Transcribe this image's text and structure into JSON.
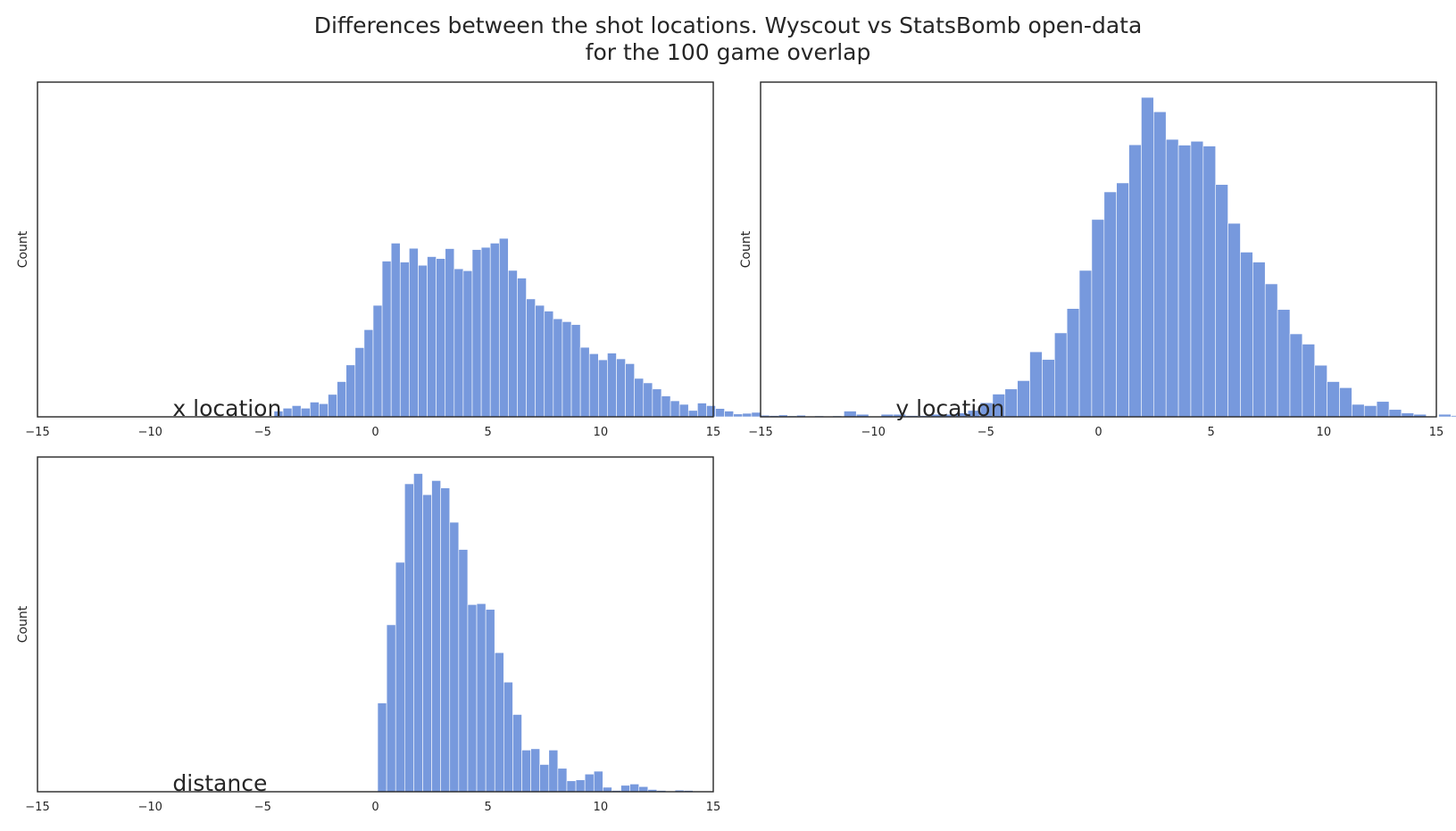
{
  "figure": {
    "title_line1": "Differences between the shot locations. Wyscout vs StatsBomb open-data",
    "title_line2": "for the 100 game overlap",
    "bar_color": "#7799dd",
    "edge_color": "#ffffff"
  },
  "chart_data": [
    {
      "type": "bar",
      "panel": "x",
      "annotation": "x location",
      "xlabel": "",
      "ylabel": "Count",
      "xlim": [
        -15,
        15
      ],
      "ylim": [
        0,
        1
      ],
      "x_ticks": [
        "−15",
        "−10",
        "−5",
        "0",
        "5",
        "10",
        "15"
      ],
      "bin_left": -4.5,
      "bin_width": 0.4,
      "values": [
        0.018,
        0.027,
        0.035,
        0.027,
        0.046,
        0.041,
        0.07,
        0.11,
        0.162,
        0.216,
        0.272,
        0.348,
        0.486,
        0.542,
        0.483,
        0.526,
        0.473,
        0.5,
        0.494,
        0.525,
        0.462,
        0.456,
        0.522,
        0.529,
        0.542,
        0.557,
        0.457,
        0.433,
        0.368,
        0.348,
        0.33,
        0.306,
        0.297,
        0.288,
        0.217,
        0.197,
        0.178,
        0.199,
        0.181,
        0.166,
        0.12,
        0.106,
        0.087,
        0.065,
        0.05,
        0.039,
        0.02,
        0.043,
        0.035,
        0.026,
        0.018,
        0.009,
        0.011,
        0.014,
        0.005,
        0.004,
        0.006,
        0.003,
        0.005,
        0.002,
        0.003,
        0.0,
        0.003,
        0.002,
        0.0,
        0.0,
        0.002,
        0.0,
        0.0,
        0.001
      ]
    },
    {
      "type": "bar",
      "panel": "y",
      "annotation": "y location",
      "xlabel": "",
      "ylabel": "Count",
      "xlim": [
        -15,
        15
      ],
      "ylim": [
        0,
        1
      ],
      "x_ticks": [
        "−15",
        "−10",
        "−5",
        "0",
        "5",
        "10",
        "15"
      ],
      "bin_left": -11.3,
      "bin_width": 0.55,
      "values": [
        0.018,
        0.008,
        0.0,
        0.008,
        0.008,
        0.004,
        0.004,
        0.008,
        0.008,
        0.012,
        0.02,
        0.044,
        0.071,
        0.087,
        0.113,
        0.203,
        0.179,
        0.262,
        0.338,
        0.457,
        0.616,
        0.702,
        0.73,
        0.849,
        0.997,
        0.952,
        0.866,
        0.848,
        0.86,
        0.845,
        0.725,
        0.604,
        0.514,
        0.483,
        0.415,
        0.335,
        0.259,
        0.227,
        0.161,
        0.11,
        0.091,
        0.039,
        0.035,
        0.048,
        0.023,
        0.012,
        0.008,
        0.0,
        0.008,
        0.004,
        0.004,
        0.0,
        0.004,
        0.0,
        0.0,
        0.004
      ]
    },
    {
      "type": "bar",
      "panel": "distance",
      "annotation": "distance",
      "xlabel": "",
      "ylabel": "Count",
      "xlim": [
        -15,
        15
      ],
      "ylim": [
        0,
        1
      ],
      "x_ticks": [
        "−15",
        "−10",
        "−5",
        "0",
        "5",
        "10",
        "15"
      ],
      "bin_left": 0.1,
      "bin_width": 0.4,
      "values": [
        0.277,
        0.521,
        0.716,
        0.961,
        0.993,
        0.927,
        0.971,
        0.948,
        0.841,
        0.756,
        0.584,
        0.587,
        0.569,
        0.434,
        0.342,
        0.241,
        0.13,
        0.134,
        0.085,
        0.13,
        0.073,
        0.034,
        0.037,
        0.055,
        0.064,
        0.014,
        0.004,
        0.02,
        0.024,
        0.016,
        0.007,
        0.004,
        0.002,
        0.005,
        0.004
      ]
    }
  ]
}
